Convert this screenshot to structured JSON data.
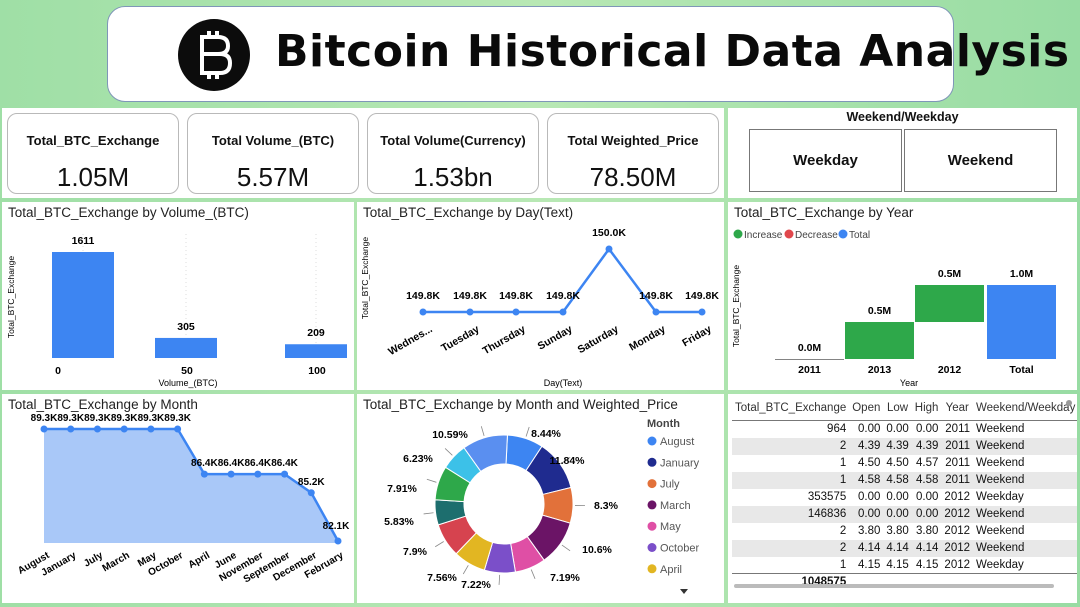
{
  "title": "Bitcoin Historical Data Analysis",
  "kpis": [
    {
      "label": "Total_BTC_Exchange",
      "value": "1.05M"
    },
    {
      "label": "Total Volume_(BTC)",
      "value": "5.57M"
    },
    {
      "label": "Total Volume(Currency)",
      "value": "1.53bn"
    },
    {
      "label": "Total Weighted_Price",
      "value": "78.50M"
    }
  ],
  "slicer": {
    "title": "Weekend/Weekday",
    "options": [
      "Weekday",
      "Weekend"
    ]
  },
  "colors": {
    "bar": "#3d85f2",
    "increase": "#2ea84a",
    "decrease": "#e0474c",
    "total": "#3d85f2",
    "area": "#a9c8f8"
  },
  "chart_data": [
    {
      "type": "bar",
      "title": "Total_BTC_Exchange by Volume_(BTC)",
      "xlabel": "Volume_(BTC)",
      "ylabel": "Total_BTC_Exchange",
      "categories": [
        "0",
        "50",
        "100"
      ],
      "values": [
        1611,
        305,
        209
      ],
      "data_labels": [
        "1611",
        "305",
        "209"
      ]
    },
    {
      "type": "line",
      "title": "Total_BTC_Exchange by Day(Text)",
      "xlabel": "Day(Text)",
      "ylabel": "Total_BTC_Exchange",
      "categories": [
        "Wednes...",
        "Tuesday",
        "Thursday",
        "Sunday",
        "Saturday",
        "Monday",
        "Friday"
      ],
      "values": [
        149800,
        149800,
        149800,
        149800,
        150000,
        149800,
        149800
      ],
      "data_labels": [
        "149.8K",
        "149.8K",
        "149.8K",
        "149.8K",
        "150.0K",
        "149.8K",
        "149.8K"
      ]
    },
    {
      "type": "bar",
      "subtype": "waterfall",
      "title": "Total_BTC_Exchange by Year",
      "xlabel": "Year",
      "ylabel": "Total_BTC_Exchange",
      "legend": [
        "Increase",
        "Decrease",
        "Total"
      ],
      "categories": [
        "2011",
        "2013",
        "2012",
        "Total"
      ],
      "values": [
        0,
        500000,
        500000,
        1000000
      ],
      "data_labels": [
        "0.0M",
        "0.5M",
        "0.5M",
        "1.0M"
      ]
    },
    {
      "type": "area",
      "title": "Total_BTC_Exchange by Month",
      "categories": [
        "August",
        "January",
        "July",
        "March",
        "May",
        "October",
        "April",
        "June",
        "November",
        "September",
        "December",
        "February"
      ],
      "values": [
        89300,
        89300,
        89300,
        89300,
        89300,
        89300,
        86400,
        86400,
        86400,
        86400,
        85200,
        82100
      ],
      "data_labels": [
        "89.3K",
        "89.3K",
        "89.3K",
        "89.3K",
        "89.3K",
        "89.3K",
        "86.4K",
        "86.4K",
        "86.4K",
        "86.4K",
        "85.2K",
        "82.1K"
      ]
    },
    {
      "type": "pie",
      "subtype": "donut",
      "title": "Total_BTC_Exchange by Month and Weighted_Price",
      "legend_title": "Month",
      "legend": [
        "August",
        "January",
        "July",
        "March",
        "May",
        "October",
        "April"
      ],
      "slices": [
        {
          "label": "8.44%",
          "value": 8.44,
          "color": "#3d85f2"
        },
        {
          "label": "11.84%",
          "value": 11.84,
          "color": "#1f2b8f"
        },
        {
          "label": "8.3%",
          "value": 8.3,
          "color": "#e2713a"
        },
        {
          "label": "10.6%",
          "value": 10.6,
          "color": "#6b1466"
        },
        {
          "label": "7.19%",
          "value": 7.19,
          "color": "#df4fa5"
        },
        {
          "label": "7.22%",
          "value": 7.22,
          "color": "#7b4fc9"
        },
        {
          "label": "7.56%",
          "value": 7.56,
          "color": "#e2b622"
        },
        {
          "label": "7.9%",
          "value": 7.9,
          "color": "#d6434f"
        },
        {
          "label": "5.83%",
          "value": 5.83,
          "color": "#1d6e6e"
        },
        {
          "label": "7.91%",
          "value": 7.91,
          "color": "#2ea84a"
        },
        {
          "label": "6.23%",
          "value": 6.23,
          "color": "#3cc1e8"
        },
        {
          "label": "10.59%",
          "value": 10.59,
          "color": "#5a8ff0"
        }
      ],
      "legend_colors": [
        "#3d85f2",
        "#1f2b8f",
        "#e2713a",
        "#6b1466",
        "#df4fa5",
        "#7b4fc9",
        "#e2b622"
      ]
    }
  ],
  "table": {
    "columns": [
      "Total_BTC_Exchange",
      "Open",
      "Low",
      "High",
      "Year",
      "Weekend/Weekday"
    ],
    "rows": [
      [
        "964",
        "0.00",
        "0.00",
        "0.00",
        "2011",
        "Weekend"
      ],
      [
        "2",
        "4.39",
        "4.39",
        "4.39",
        "2011",
        "Weekend"
      ],
      [
        "1",
        "4.50",
        "4.50",
        "4.57",
        "2011",
        "Weekend"
      ],
      [
        "1",
        "4.58",
        "4.58",
        "4.58",
        "2011",
        "Weekend"
      ],
      [
        "353575",
        "0.00",
        "0.00",
        "0.00",
        "2012",
        "Weekday"
      ],
      [
        "146836",
        "0.00",
        "0.00",
        "0.00",
        "2012",
        "Weekend"
      ],
      [
        "2",
        "3.80",
        "3.80",
        "3.80",
        "2012",
        "Weekend"
      ],
      [
        "2",
        "4.14",
        "4.14",
        "4.14",
        "2012",
        "Weekend"
      ],
      [
        "1",
        "4.15",
        "4.15",
        "4.15",
        "2012",
        "Weekday"
      ]
    ],
    "total": "1048575"
  }
}
